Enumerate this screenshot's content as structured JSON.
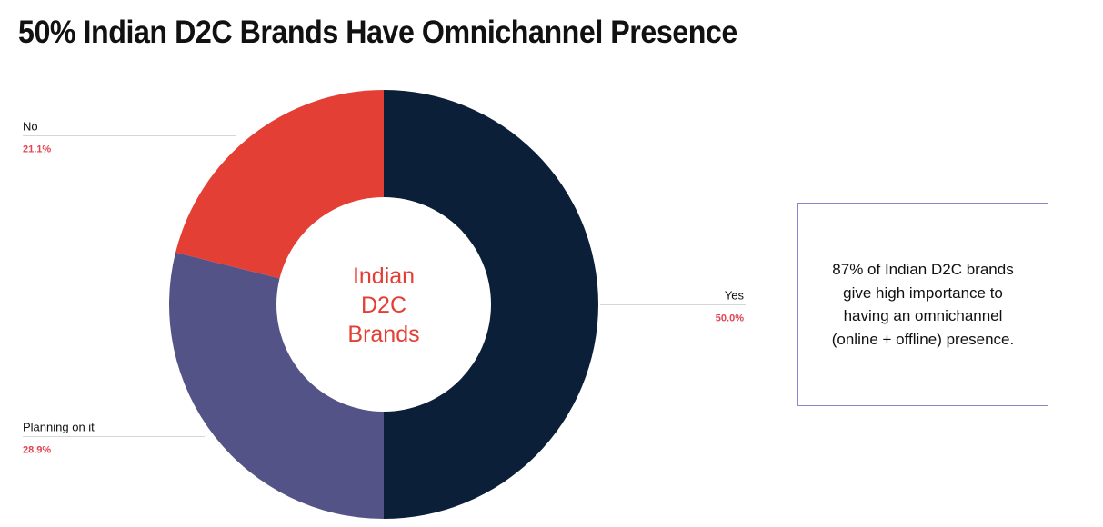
{
  "title": "50% Indian D2C Brands Have Omnichannel Presence",
  "callout": {
    "text": "87% of Indian D2C brands give high importance to having an omnichannel (online + offline) presence."
  },
  "chart_data": {
    "type": "pie",
    "donut": true,
    "center_label": [
      "Indian",
      "D2C",
      "Brands"
    ],
    "slices": [
      {
        "label": "Yes",
        "value": 50.0,
        "value_label": "50.0%",
        "color": "#0b1f38"
      },
      {
        "label": "Planning on it",
        "value": 28.9,
        "value_label": "28.9%",
        "color": "#545388"
      },
      {
        "label": "No",
        "value": 21.1,
        "value_label": "21.1%",
        "color": "#e33f34"
      }
    ],
    "value_label_color": "#e04552",
    "center_label_color": "#e33f34",
    "leader_line_color": "#d6d6d6"
  }
}
